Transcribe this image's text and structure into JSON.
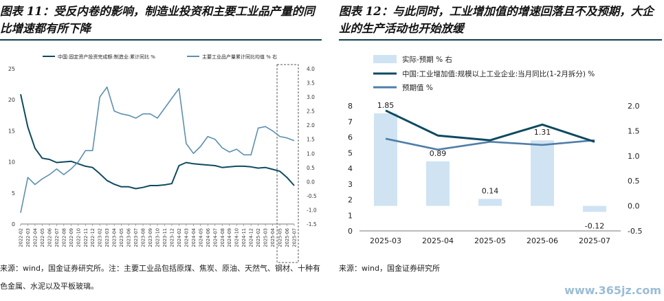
{
  "left": {
    "title": "图表 11：受反内卷的影响，制造业投资和主要工业品产量的同比增速都有所下降",
    "source": "来源：wind，国金证券研究所。注：主要工业品包括原煤、焦炭、原油、天然气、钢材、十种有色金属、水泥以及平板玻璃。"
  },
  "right": {
    "title": "图表 12：与此同时，工业增加值的增速回落且不及预期，大企业的生产活动也开始放缓",
    "source": "来源：wind，国金证券研究所"
  },
  "watermark": "www.365jz.com",
  "chart_data": [
    {
      "type": "line",
      "x": [
        "2022-02",
        "2022-03",
        "2022-04",
        "2022-05",
        "2022-06",
        "2022-07",
        "2022-08",
        "2022-09",
        "2022-10",
        "2022-11",
        "2022-12",
        "2023-02",
        "2023-03",
        "2023-04",
        "2023-05",
        "2023-06",
        "2023-07",
        "2023-08",
        "2023-09",
        "2023-10",
        "2023-11",
        "2023-12",
        "2024-02",
        "2024-03",
        "2024-04",
        "2024-05",
        "2024-06",
        "2024-07",
        "2024-08",
        "2024-09",
        "2024-10",
        "2024-11",
        "2024-12",
        "2025-02",
        "2025-03",
        "2025-04",
        "2025-05",
        "2025-06",
        "2025-07"
      ],
      "series": [
        {
          "name": "中国:固定资产投资完成额:制造业:累计同比 %",
          "axis": "left",
          "color": "#0d4a60",
          "values": [
            20.9,
            15.6,
            12.2,
            10.6,
            10.4,
            9.9,
            10.0,
            10.1,
            9.7,
            9.3,
            9.1,
            8.1,
            7.0,
            6.4,
            6.0,
            6.0,
            5.7,
            5.9,
            6.2,
            6.2,
            6.3,
            6.5,
            9.4,
            9.9,
            9.7,
            9.6,
            9.5,
            9.4,
            9.1,
            9.2,
            9.3,
            9.3,
            9.2,
            9.0,
            9.1,
            8.8,
            8.5,
            7.5,
            6.2
          ]
        },
        {
          "name": "主要工业品产量累计同比均值 % 右",
          "axis": "right",
          "color": "#5b8fae",
          "values": [
            -1.1,
            0.15,
            -0.1,
            0.1,
            0.25,
            0.45,
            0.25,
            0.45,
            0.7,
            1.1,
            1.1,
            3.0,
            3.35,
            2.5,
            2.4,
            2.35,
            2.25,
            2.4,
            2.4,
            2.25,
            2.6,
            2.95,
            3.3,
            1.35,
            1.0,
            1.25,
            1.6,
            1.5,
            1.2,
            1.05,
            1.15,
            0.95,
            0.95,
            1.9,
            1.95,
            1.8,
            1.6,
            1.55,
            1.45
          ]
        }
      ],
      "ylim_left": [
        0,
        25
      ],
      "yticks_left": [
        "0",
        "5",
        "10",
        "15",
        "20",
        "25"
      ],
      "ylim_right": [
        -1.5,
        4.0
      ],
      "yticks_right": [
        "-1.5",
        "-1.0",
        "-0.5",
        "0.0",
        "0.5",
        "1.0",
        "1.5",
        "2.0",
        "2.5",
        "3.0",
        "3.5",
        "4.0"
      ],
      "highlight_range": [
        "2025-05",
        "2025-07"
      ],
      "grid": false,
      "legend": "top"
    },
    {
      "type": "bar",
      "categories": [
        "2025-03",
        "2025-04",
        "2025-05",
        "2025-06",
        "2025-07"
      ],
      "series": [
        {
          "name": "实际-预期 % 右",
          "axis": "right",
          "kind": "bar",
          "color": "#cfe3f3",
          "values": [
            1.85,
            0.89,
            0.14,
            1.31,
            -0.12
          ],
          "labels": [
            "1.85",
            "0.89",
            "0.14",
            "1.31",
            "-0.12"
          ]
        },
        {
          "name": "中国:工业增加值:规模以上工业企业:当月同比(1-2月拆分) %",
          "axis": "left",
          "kind": "line",
          "color": "#0d4a60",
          "values": [
            7.7,
            6.1,
            5.8,
            6.8,
            5.7
          ]
        },
        {
          "name": "预期值 %",
          "axis": "left",
          "kind": "line",
          "color": "#4f7ea8",
          "values": [
            5.9,
            5.2,
            5.7,
            5.5,
            5.8
          ]
        }
      ],
      "ylim_left": [
        0,
        8
      ],
      "yticks_left": [
        "0",
        "1",
        "2",
        "3",
        "4",
        "5",
        "6",
        "7",
        "8"
      ],
      "ylim_right": [
        -0.5,
        2.0
      ],
      "yticks_right": [
        "-0.5",
        "0.0",
        "0.5",
        "1.0",
        "1.5",
        "2.0"
      ],
      "grid": false,
      "legend": "top-left"
    }
  ]
}
